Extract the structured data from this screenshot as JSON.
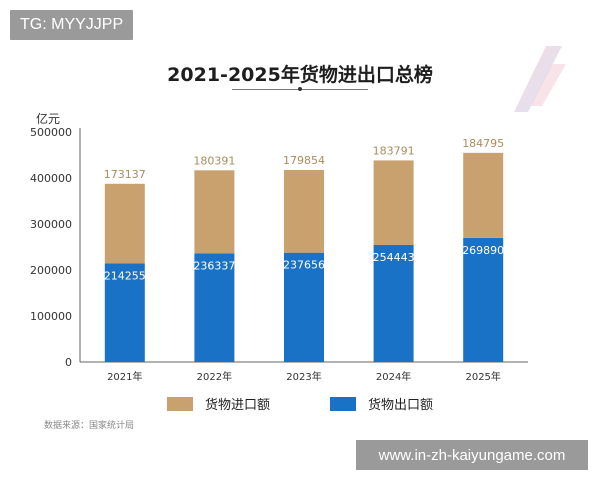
{
  "watermarks": {
    "top_left": "TG: MYYJJPP",
    "bottom_right": "www.in-zh-kaiyungame.com"
  },
  "source_note": "数据来源：国家统计局",
  "colors": {
    "import": "#c9a16e",
    "export": "#1a72c7",
    "import_label": "#a98c5e",
    "export_label": "#ffffff"
  },
  "chart_data": {
    "type": "bar",
    "stacked": true,
    "title": "2021-2025年货物进出口总榜",
    "y_unit": "亿元",
    "ylim": [
      0,
      500000
    ],
    "yticks": [
      "500000",
      "400000",
      "300000",
      "200000",
      "100000",
      "0"
    ],
    "ytick_values": [
      500000,
      400000,
      300000,
      200000,
      100000,
      0
    ],
    "categories": [
      "2021年",
      "2022年",
      "2023年",
      "2024年",
      "2025年"
    ],
    "series": [
      {
        "key": "export",
        "name": "货物出口额",
        "values": [
          214255,
          236337,
          237656,
          254443,
          269890
        ]
      },
      {
        "key": "import",
        "name": "货物进口额",
        "values": [
          173137,
          180391,
          179854,
          183791,
          184795
        ]
      }
    ],
    "legend": [
      "货物进口额",
      "货物出口额"
    ],
    "legend_position": "bottom",
    "grid": false
  }
}
